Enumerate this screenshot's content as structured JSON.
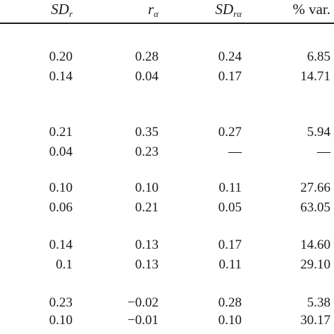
{
  "header": {
    "col1_main": "SD",
    "col1_sub": "r",
    "col2_main": "r",
    "col2_sub": "α",
    "col3_main": "SD",
    "col3_sub": "rα",
    "col4": "% var."
  },
  "rows": [
    [
      "0.20",
      "0.28",
      "0.24",
      "6.85"
    ],
    [
      "0.14",
      "0.04",
      "0.17",
      "14.71"
    ],
    [
      "0.21",
      "0.35",
      "0.27",
      "5.94"
    ],
    [
      "0.04",
      "0.23",
      "—",
      "—"
    ],
    [
      "0.10",
      "0.10",
      "0.11",
      "27.66"
    ],
    [
      "0.06",
      "0.21",
      "0.05",
      "63.05"
    ],
    [
      "0.14",
      "0.13",
      "0.17",
      "14.60"
    ],
    [
      "0.1",
      "0.13",
      "0.11",
      "29.10"
    ],
    [
      "0.23",
      "−0.02",
      "0.28",
      "5.38"
    ],
    [
      "0.10",
      "−0.01",
      "0.10",
      "30.17"
    ]
  ]
}
